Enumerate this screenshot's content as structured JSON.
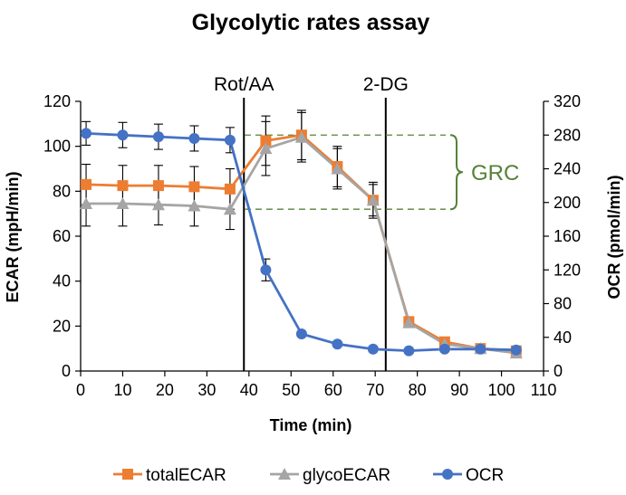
{
  "chart_data": {
    "type": "line",
    "title": "Glycolytic rates assay",
    "xlabel": "Time (min)",
    "ylabel_left": "ECAR (mpH/min)",
    "ylabel_right": "OCR (pmol/min)",
    "xlim": [
      0,
      110
    ],
    "ylim_left": [
      0,
      120
    ],
    "ylim_right": [
      0,
      320
    ],
    "xticks": [
      0,
      10,
      20,
      30,
      40,
      50,
      60,
      70,
      80,
      90,
      100,
      110
    ],
    "yticks_left": [
      0,
      20,
      40,
      60,
      80,
      100,
      120
    ],
    "yticks_right": [
      0,
      40,
      80,
      120,
      160,
      200,
      240,
      280,
      320
    ],
    "grid": false,
    "legend_position": "bottom",
    "x": [
      1.3,
      10,
      18.5,
      27,
      35.5,
      44,
      52.5,
      61,
      69.5,
      78,
      86.5,
      95,
      103.5
    ],
    "series": [
      {
        "name": "totalECAR",
        "axis": "left",
        "color": "#ED7D31",
        "marker": "square",
        "values": [
          83,
          82.5,
          82.5,
          82,
          81,
          102.5,
          105,
          91,
          76,
          22,
          13,
          10,
          9
        ],
        "errors": [
          9,
          9,
          9,
          9,
          9,
          11,
          11,
          9,
          8,
          1.5,
          1,
          1,
          1
        ]
      },
      {
        "name": "glycoECAR",
        "axis": "left",
        "color": "#A5A5A5",
        "marker": "triangle",
        "values": [
          74.5,
          74.5,
          74,
          73.5,
          72,
          99,
          104,
          90,
          76,
          21.5,
          12,
          10,
          8
        ],
        "errors": [
          10,
          10,
          9,
          9,
          9,
          12,
          11,
          9,
          7,
          1.5,
          1,
          1,
          1
        ]
      },
      {
        "name": "OCR",
        "axis": "right",
        "color": "#4472C4",
        "marker": "circle",
        "values": [
          282,
          280,
          278,
          276,
          274,
          120,
          44,
          32,
          26,
          24,
          26,
          26,
          25
        ],
        "errors": [
          14,
          15,
          15,
          15,
          15,
          13,
          3,
          3,
          3,
          3,
          3,
          3,
          3
        ]
      }
    ],
    "annotations": {
      "injections": [
        {
          "label": "Rot/AA",
          "x": 38.8
        },
        {
          "label": "2-DG",
          "x": 72.5
        }
      ],
      "grc": {
        "label": "GRC",
        "from_x": 35.5,
        "top_value": 105,
        "bottom_value": 72,
        "color": "#548235"
      }
    }
  }
}
